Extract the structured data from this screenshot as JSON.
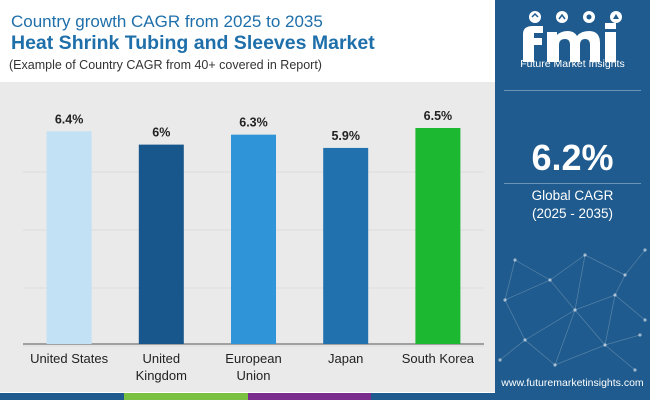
{
  "header": {
    "subtitle": "Country growth CAGR from 2025 to 2035",
    "title": "Heat Shrink Tubing and Sleeves Market",
    "note": "(Example of Country CAGR from 40+ covered in Report)"
  },
  "chart_data": {
    "type": "bar",
    "categories": [
      "United States",
      "United Kingdom",
      "European Union",
      "Japan",
      "South Korea"
    ],
    "category_lines": [
      [
        "United States"
      ],
      [
        "United",
        "Kingdom"
      ],
      [
        "European",
        "Union"
      ],
      [
        "Japan"
      ],
      [
        "South Korea"
      ]
    ],
    "values": [
      6.4,
      6.0,
      6.3,
      5.9,
      6.5
    ],
    "value_labels": [
      "6.4%",
      "6%",
      "6.3%",
      "5.9%",
      "6.5%"
    ],
    "colors": [
      "#c2e1f5",
      "#18578c",
      "#2f94d8",
      "#2071ad",
      "#1cb832"
    ],
    "ylim": [
      0,
      6.5
    ],
    "grid": true,
    "y_axis_visible": false,
    "legend": "none"
  },
  "sidebar": {
    "brand": "Future Market Insights",
    "stat_value": "6.2%",
    "stat_label": "Global CAGR",
    "stat_period": "(2025 - 2035)",
    "url": "www.futuremarketinsights.com",
    "icon": "fmi-logo-icon"
  },
  "colors": {
    "title": "#1f6faa",
    "sidebar_bg": "#1f5b8e",
    "chart_bg": "#eaeaea",
    "footer_strip": [
      "#1f5b8e",
      "#7ac142",
      "#7b2d8e",
      "#1f5b8e"
    ]
  }
}
